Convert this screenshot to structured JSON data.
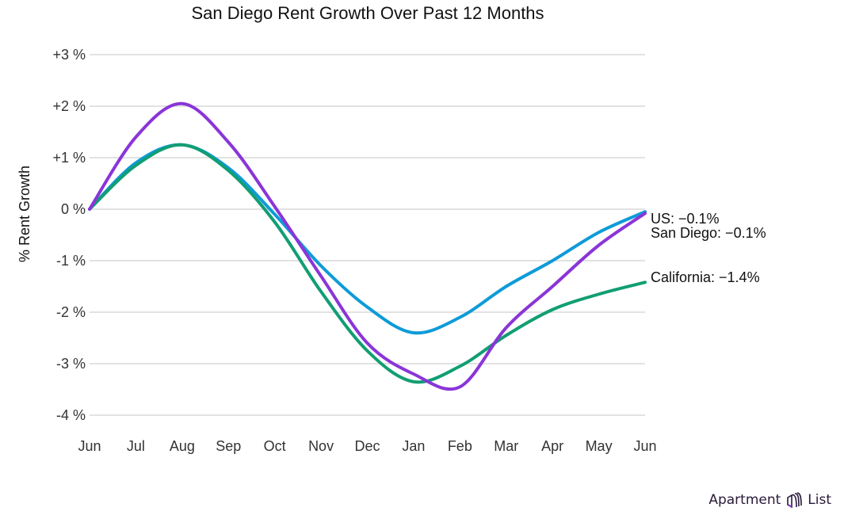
{
  "chart_data": {
    "type": "line",
    "title": "San Diego Rent Growth Over Past 12 Months",
    "ylabel": "% Rent Growth",
    "xlabel": "",
    "categories": [
      "Jun",
      "Jul",
      "Aug",
      "Sep",
      "Oct",
      "Nov",
      "Dec",
      "Jan",
      "Feb",
      "Mar",
      "Apr",
      "May",
      "Jun"
    ],
    "yticks": [
      3,
      2,
      1,
      0,
      -1,
      -2,
      -3,
      -4
    ],
    "ytick_labels": [
      "+3 %",
      "+2 %",
      "+1 %",
      "0 %",
      "-1 %",
      "-2 %",
      "-3 %",
      "-4 %"
    ],
    "ylim": [
      -4,
      3
    ],
    "grid": true,
    "series": [
      {
        "name": "US",
        "color": "#0e9bd8",
        "end_label": "US: −0.1%",
        "values": [
          0,
          0.9,
          1.25,
          0.8,
          -0.1,
          -1.1,
          -1.9,
          -2.4,
          -2.1,
          -1.5,
          -1.0,
          -0.45,
          -0.05
        ]
      },
      {
        "name": "California",
        "color": "#119e73",
        "end_label": "California: −1.4%",
        "values": [
          0,
          0.85,
          1.25,
          0.75,
          -0.25,
          -1.6,
          -2.75,
          -3.35,
          -3.05,
          -2.45,
          -1.95,
          -1.65,
          -1.42
        ]
      },
      {
        "name": "San Diego",
        "color": "#8a35d8",
        "end_label": "San Diego: −0.1%",
        "values": [
          0,
          1.4,
          2.05,
          1.3,
          0.05,
          -1.3,
          -2.6,
          -3.2,
          -3.45,
          -2.3,
          -1.5,
          -0.7,
          -0.08
        ]
      }
    ]
  },
  "brand": {
    "left": "Apartment",
    "right": "List"
  }
}
